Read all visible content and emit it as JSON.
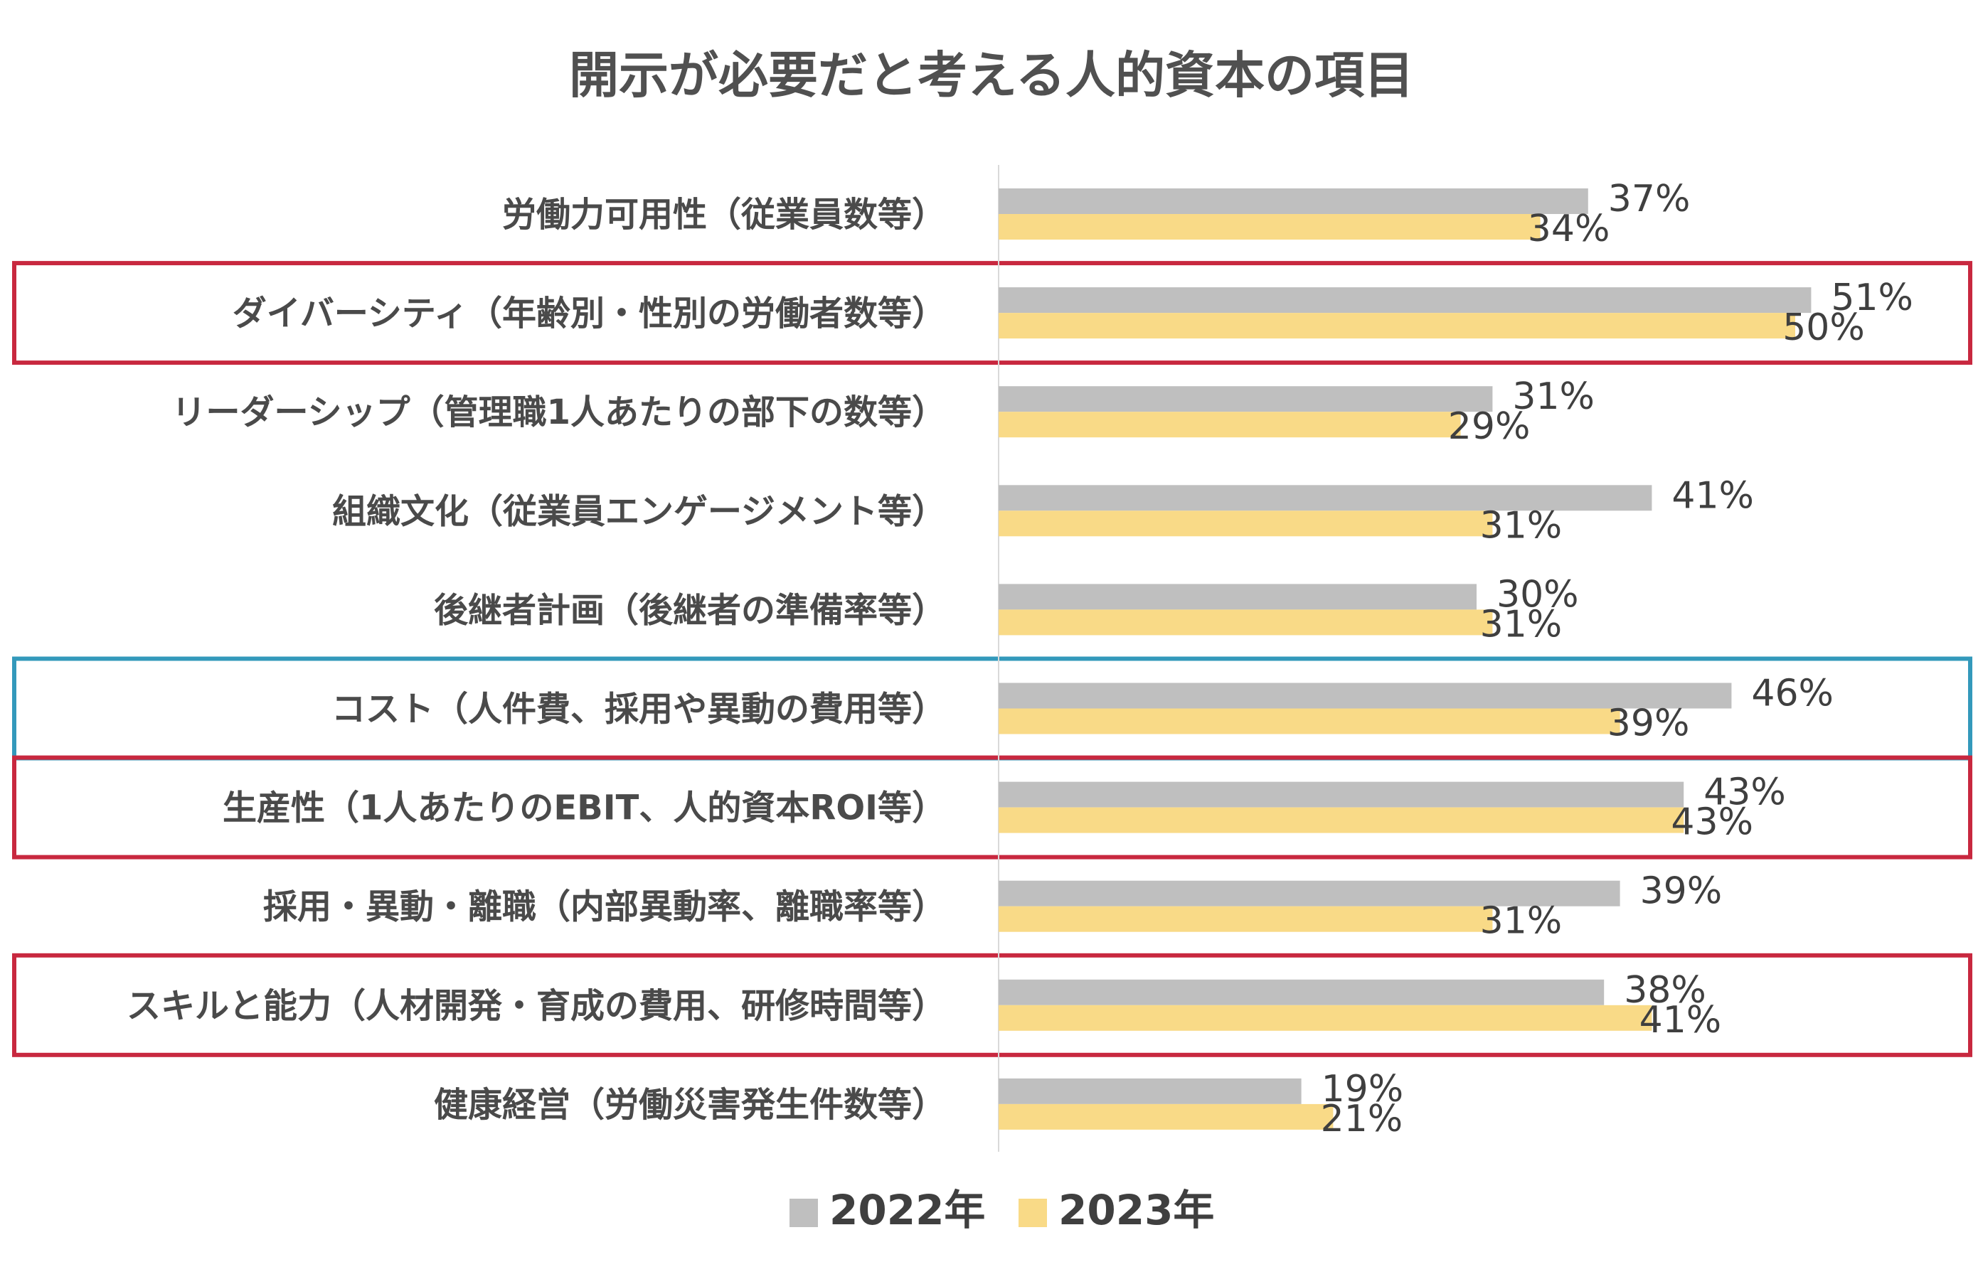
{
  "chart_data": {
    "type": "bar",
    "orientation": "horizontal",
    "title": "開示が必要だと考える人的資本の項目",
    "categories": [
      "労働力可用性（従業員数等）",
      "ダイバーシティ（年齢別・性別の労働者数等）",
      "リーダーシップ（管理職1人あたりの部下の数等）",
      "組織文化（従業員エンゲージメント等）",
      "後継者計画（後継者の準備率等）",
      "コスト（人件費、採用や異動の費用等）",
      "生産性（1人あたりのEBIT、人的資本ROI等）",
      "採用・異動・離職（内部異動率、離職率等）",
      "スキルと能力（人材開発・育成の費用、研修時間等）",
      "健康経営（労働災害発生件数等）"
    ],
    "series": [
      {
        "name": "2022年",
        "color": "#bfbfbf",
        "values": [
          37,
          51,
          31,
          41,
          30,
          46,
          43,
          39,
          38,
          19
        ],
        "labels": [
          "37%",
          "51%",
          "31%",
          "41%",
          "30%",
          "46%",
          "43%",
          "39%",
          "38%",
          "19%"
        ]
      },
      {
        "name": "2023年",
        "color": "#f9da87",
        "values": [
          34,
          50,
          29,
          31,
          31,
          39,
          43,
          31,
          41,
          21
        ],
        "labels": [
          "34%",
          "50%",
          "29%",
          "31%",
          "31%",
          "39%",
          "43%",
          "31%",
          "41%",
          "21%"
        ]
      }
    ],
    "xlim": [
      0,
      100
    ],
    "unit": "%",
    "grid": false,
    "legend_position": "bottom",
    "highlight_boxes": [
      {
        "category_index": 1,
        "color": "#c8283f"
      },
      {
        "category_index": 5,
        "color": "#3399bb"
      },
      {
        "category_index": 6,
        "color": "#c8283f"
      },
      {
        "category_index": 8,
        "color": "#c8283f"
      }
    ]
  }
}
